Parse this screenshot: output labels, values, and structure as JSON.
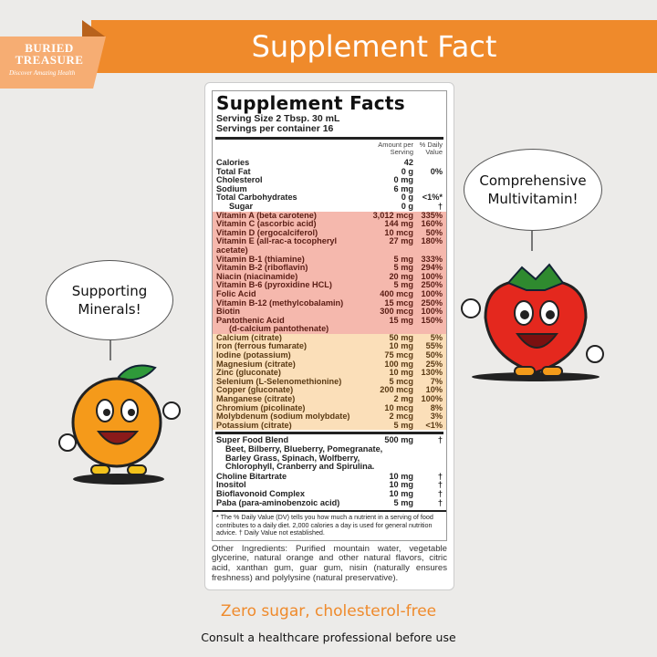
{
  "header": {
    "title": "Supplement Fact"
  },
  "logo": {
    "line1": "BURIED",
    "line2": "TREASURE",
    "tagline": "Discover Amazing Health"
  },
  "bubbles": {
    "left": "Supporting Minerals!",
    "right": "Comprehensive Multivitamin!"
  },
  "label": {
    "title": "Supplement Facts",
    "serving_size": "Serving Size 2 Tbsp. 30 mL",
    "servings": "Servings per container 16",
    "col_amount_1": "Amount per",
    "col_amount_2": "Serving",
    "col_dv_1": "% Daily",
    "col_dv_2": "Value",
    "basic": [
      {
        "n": "Calories",
        "a": "42",
        "d": ""
      },
      {
        "n": "Total Fat",
        "a": "0 g",
        "d": "0%"
      },
      {
        "n": "Cholesterol",
        "a": "0 mg",
        "d": ""
      },
      {
        "n": "Sodium",
        "a": "6 mg",
        "d": ""
      },
      {
        "n": "Total Carbohydrates",
        "a": "0 g",
        "d": "<1%*"
      },
      {
        "n": "Sugar",
        "a": "0 g",
        "d": "†"
      }
    ],
    "vitamins": [
      {
        "n": "Vitamin A (beta carotene)",
        "a": "3,012 mcg",
        "d": "335%"
      },
      {
        "n": "Vitamin C (ascorbic acid)",
        "a": "144 mg",
        "d": "160%"
      },
      {
        "n": "Vitamin D (ergocalciferol)",
        "a": "10 mcg",
        "d": "50%"
      },
      {
        "n": "Vitamin E (all-rac-a tocopheryl acetate)",
        "a": "27 mg",
        "d": "180%"
      },
      {
        "n": "Vitamin B-1 (thiamine)",
        "a": "5 mg",
        "d": "333%"
      },
      {
        "n": "Vitamin B-2 (riboflavin)",
        "a": "5 mg",
        "d": "294%"
      },
      {
        "n": "Niacin (niacinamide)",
        "a": "20 mg",
        "d": "100%"
      },
      {
        "n": "Vitamin B-6 (pyroxidine HCL)",
        "a": "5 mg",
        "d": "250%"
      },
      {
        "n": "Folic Acid",
        "a": "400 mcg",
        "d": "100%"
      },
      {
        "n": "Vitamin B-12 (methylcobalamin)",
        "a": "15 mcg",
        "d": "250%"
      },
      {
        "n": "Biotin",
        "a": "300 mcg",
        "d": "100%"
      },
      {
        "n": "Pantothenic Acid",
        "a": "15 mg",
        "d": "150%"
      },
      {
        "n": "(d-calcium pantothenate)",
        "a": "",
        "d": ""
      }
    ],
    "minerals": [
      {
        "n": "Calcium (citrate)",
        "a": "50 mg",
        "d": "5%"
      },
      {
        "n": "Iron (ferrous fumarate)",
        "a": "10 mg",
        "d": "55%"
      },
      {
        "n": "Iodine (potassium)",
        "a": "75 mcg",
        "d": "50%"
      },
      {
        "n": "Magnesium (citrate)",
        "a": "100 mg",
        "d": "25%"
      },
      {
        "n": "Zinc (gluconate)",
        "a": "10 mg",
        "d": "130%"
      },
      {
        "n": "Selenium (L-Selenomethionine)",
        "a": "5 mcg",
        "d": "7%"
      },
      {
        "n": "Copper (gluconate)",
        "a": "200 mcg",
        "d": "10%"
      },
      {
        "n": "Manganese (citrate)",
        "a": "2 mg",
        "d": "100%"
      },
      {
        "n": "Chromium (picolinate)",
        "a": "10 mcg",
        "d": "8%"
      },
      {
        "n": "Molybdenum (sodium molybdate)",
        "a": "2 mcg",
        "d": "3%"
      },
      {
        "n": "Potassium (citrate)",
        "a": "5 mg",
        "d": "<1%"
      }
    ],
    "superfood": {
      "n": "Super Food Blend",
      "a": "500 mg",
      "d": "†",
      "desc": "Beet, Bilberry, Blueberry, Pomegranate, Barley Grass, Spinach, Wolfberry, Chlorophyll, Cranberry and Spirulina."
    },
    "others": [
      {
        "n": "Choline Bitartrate",
        "a": "10 mg",
        "d": "†"
      },
      {
        "n": "Inositol",
        "a": "10 mg",
        "d": "†"
      },
      {
        "n": "Bioflavonoid Complex",
        "a": "10 mg",
        "d": "†"
      },
      {
        "n": "Paba (para-aminobenzoic acid)",
        "a": "5 mg",
        "d": "†"
      }
    ],
    "footnote": "* The % Daily Value (DV) tells you how much a nutrient in a serving of food contributes to a daily diet. 2,000 calories a day is used for general nutrition advice.   † Daily Value not established."
  },
  "other_ingredients": "Other Ingredients:  Purified mountain water, vegetable glycerine, natural orange and other natural flavors, citric acid, xanthan gum, guar gum, nisin (naturally ensures freshness) and polylysine (natural preservative).",
  "tagline": "Zero sugar, cholesterol-free",
  "disclaimer": "Consult a healthcare professional before use",
  "colors": {
    "brand_orange": "#ef8a2b",
    "vitamin_bg": "#f5b8ad",
    "mineral_bg": "#fbdfb9"
  }
}
